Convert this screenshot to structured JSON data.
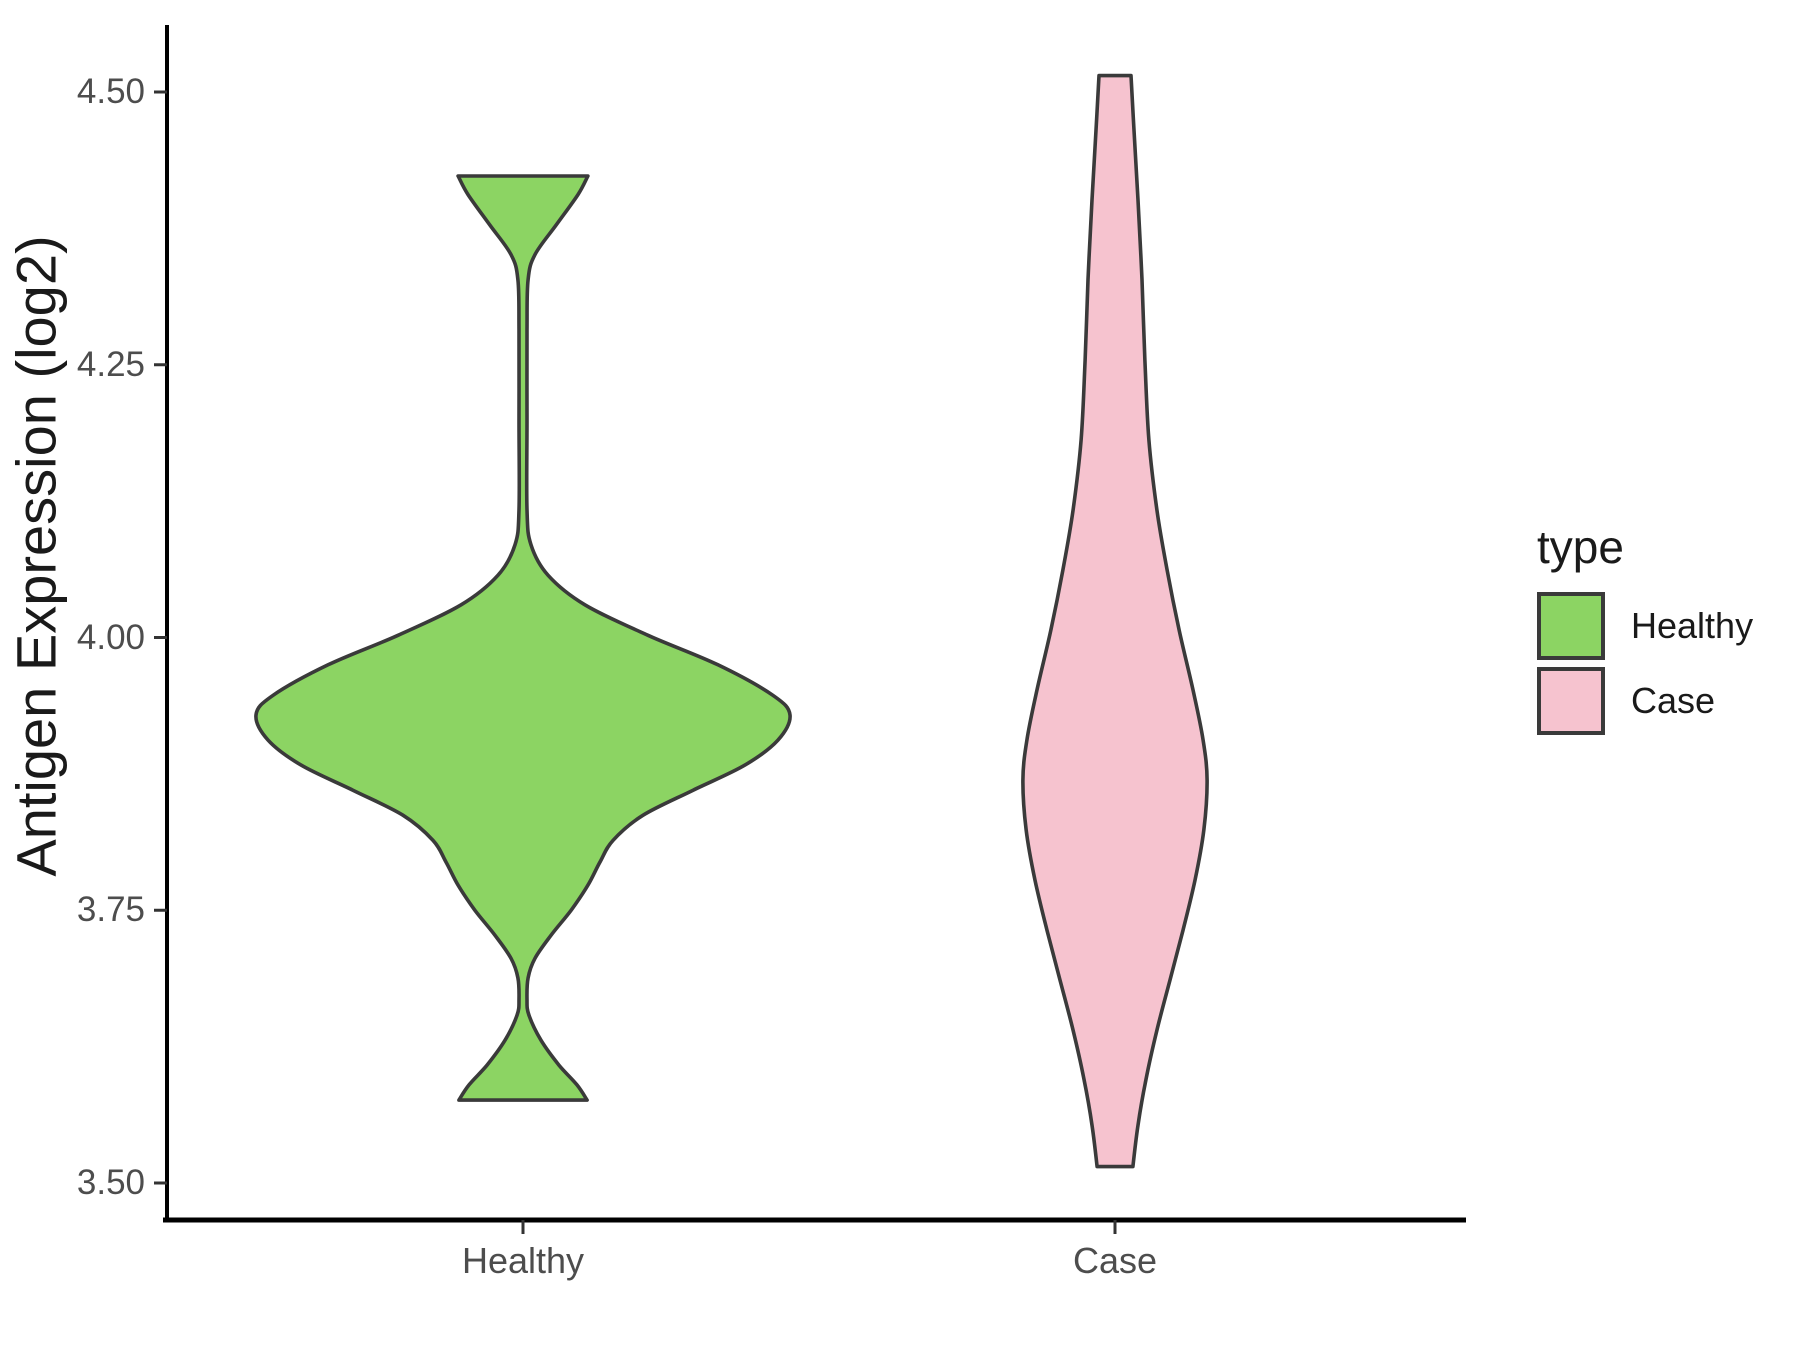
{
  "figure": {
    "background": "#ffffff",
    "axis_line_color": "#000000",
    "tick_color": "#333333",
    "tick_label_color": "#4d4d4d",
    "violin_outline_color": "#3a3a3a"
  },
  "y_axis": {
    "title": "Antigen Expression (log2)",
    "tick_labels": [
      "4.50",
      "4.25",
      "4.00",
      "3.75",
      "3.50"
    ],
    "tick_values": [
      4.5,
      4.25,
      4.0,
      3.75,
      3.5
    ]
  },
  "x_axis": {
    "categories": [
      "Healthy",
      "Case"
    ]
  },
  "legend": {
    "title": "type",
    "items": [
      {
        "label": "Healthy",
        "color": "#8cd463"
      },
      {
        "label": "Case",
        "color": "#f6c3cf"
      }
    ]
  },
  "chart_data": {
    "type": "violin",
    "title": "",
    "xlabel": "",
    "ylabel": "Antigen Expression (log2)",
    "categories": [
      "Healthy",
      "Case"
    ],
    "ylim": [
      3.46,
      4.56
    ],
    "grid": false,
    "legend_position": "right",
    "series": [
      {
        "name": "Healthy",
        "fill": "#8cd463",
        "min": 3.58,
        "max": 4.42,
        "widest_at": 3.94,
        "profile": [
          [
            4.423,
            0.243
          ],
          [
            4.406,
            0.206
          ],
          [
            4.378,
            0.124
          ],
          [
            4.351,
            0.045
          ],
          [
            4.328,
            0.019
          ],
          [
            4.282,
            0.015
          ],
          [
            4.199,
            0.015
          ],
          [
            4.117,
            0.015
          ],
          [
            4.085,
            0.03
          ],
          [
            4.057,
            0.094
          ],
          [
            4.03,
            0.232
          ],
          [
            4.002,
            0.468
          ],
          [
            3.975,
            0.73
          ],
          [
            3.947,
            0.936
          ],
          [
            3.929,
            1.0
          ],
          [
            3.906,
            0.955
          ],
          [
            3.883,
            0.831
          ],
          [
            3.86,
            0.637
          ],
          [
            3.837,
            0.449
          ],
          [
            3.814,
            0.337
          ],
          [
            3.794,
            0.288
          ],
          [
            3.773,
            0.243
          ],
          [
            3.75,
            0.18
          ],
          [
            3.727,
            0.105
          ],
          [
            3.706,
            0.045
          ],
          [
            3.688,
            0.019
          ],
          [
            3.668,
            0.015
          ],
          [
            3.654,
            0.022
          ],
          [
            3.631,
            0.067
          ],
          [
            3.608,
            0.135
          ],
          [
            3.59,
            0.202
          ],
          [
            3.576,
            0.24
          ]
        ]
      },
      {
        "name": "Case",
        "fill": "#f6c3cf",
        "min": 3.52,
        "max": 4.52,
        "widest_at": 3.88,
        "profile": [
          [
            4.515,
            0.06
          ],
          [
            4.465,
            0.071
          ],
          [
            4.401,
            0.086
          ],
          [
            4.328,
            0.101
          ],
          [
            4.254,
            0.112
          ],
          [
            4.181,
            0.127
          ],
          [
            4.117,
            0.157
          ],
          [
            4.062,
            0.195
          ],
          [
            4.007,
            0.24
          ],
          [
            3.952,
            0.292
          ],
          [
            3.906,
            0.33
          ],
          [
            3.869,
            0.345
          ],
          [
            3.824,
            0.333
          ],
          [
            3.778,
            0.3
          ],
          [
            3.732,
            0.255
          ],
          [
            3.686,
            0.206
          ],
          [
            3.64,
            0.157
          ],
          [
            3.595,
            0.116
          ],
          [
            3.553,
            0.086
          ],
          [
            3.515,
            0.067
          ]
        ]
      }
    ]
  }
}
